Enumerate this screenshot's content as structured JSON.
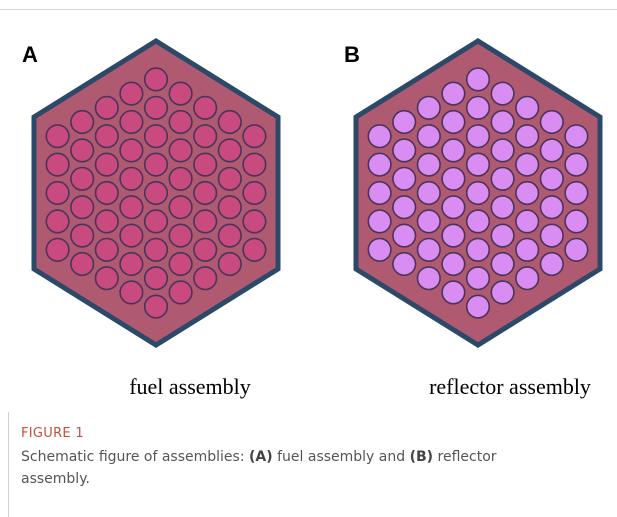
{
  "panels": [
    {
      "label": "A",
      "name": "fuel assembly"
    },
    {
      "label": "B",
      "name": "reflector assembly"
    }
  ],
  "caption": {
    "figure": "FIGURE 1",
    "parts": [
      "Schematic figure of assemblies: ",
      "(A)",
      " fuel assembly and ",
      "(B)",
      " reflector assembly."
    ]
  }
}
